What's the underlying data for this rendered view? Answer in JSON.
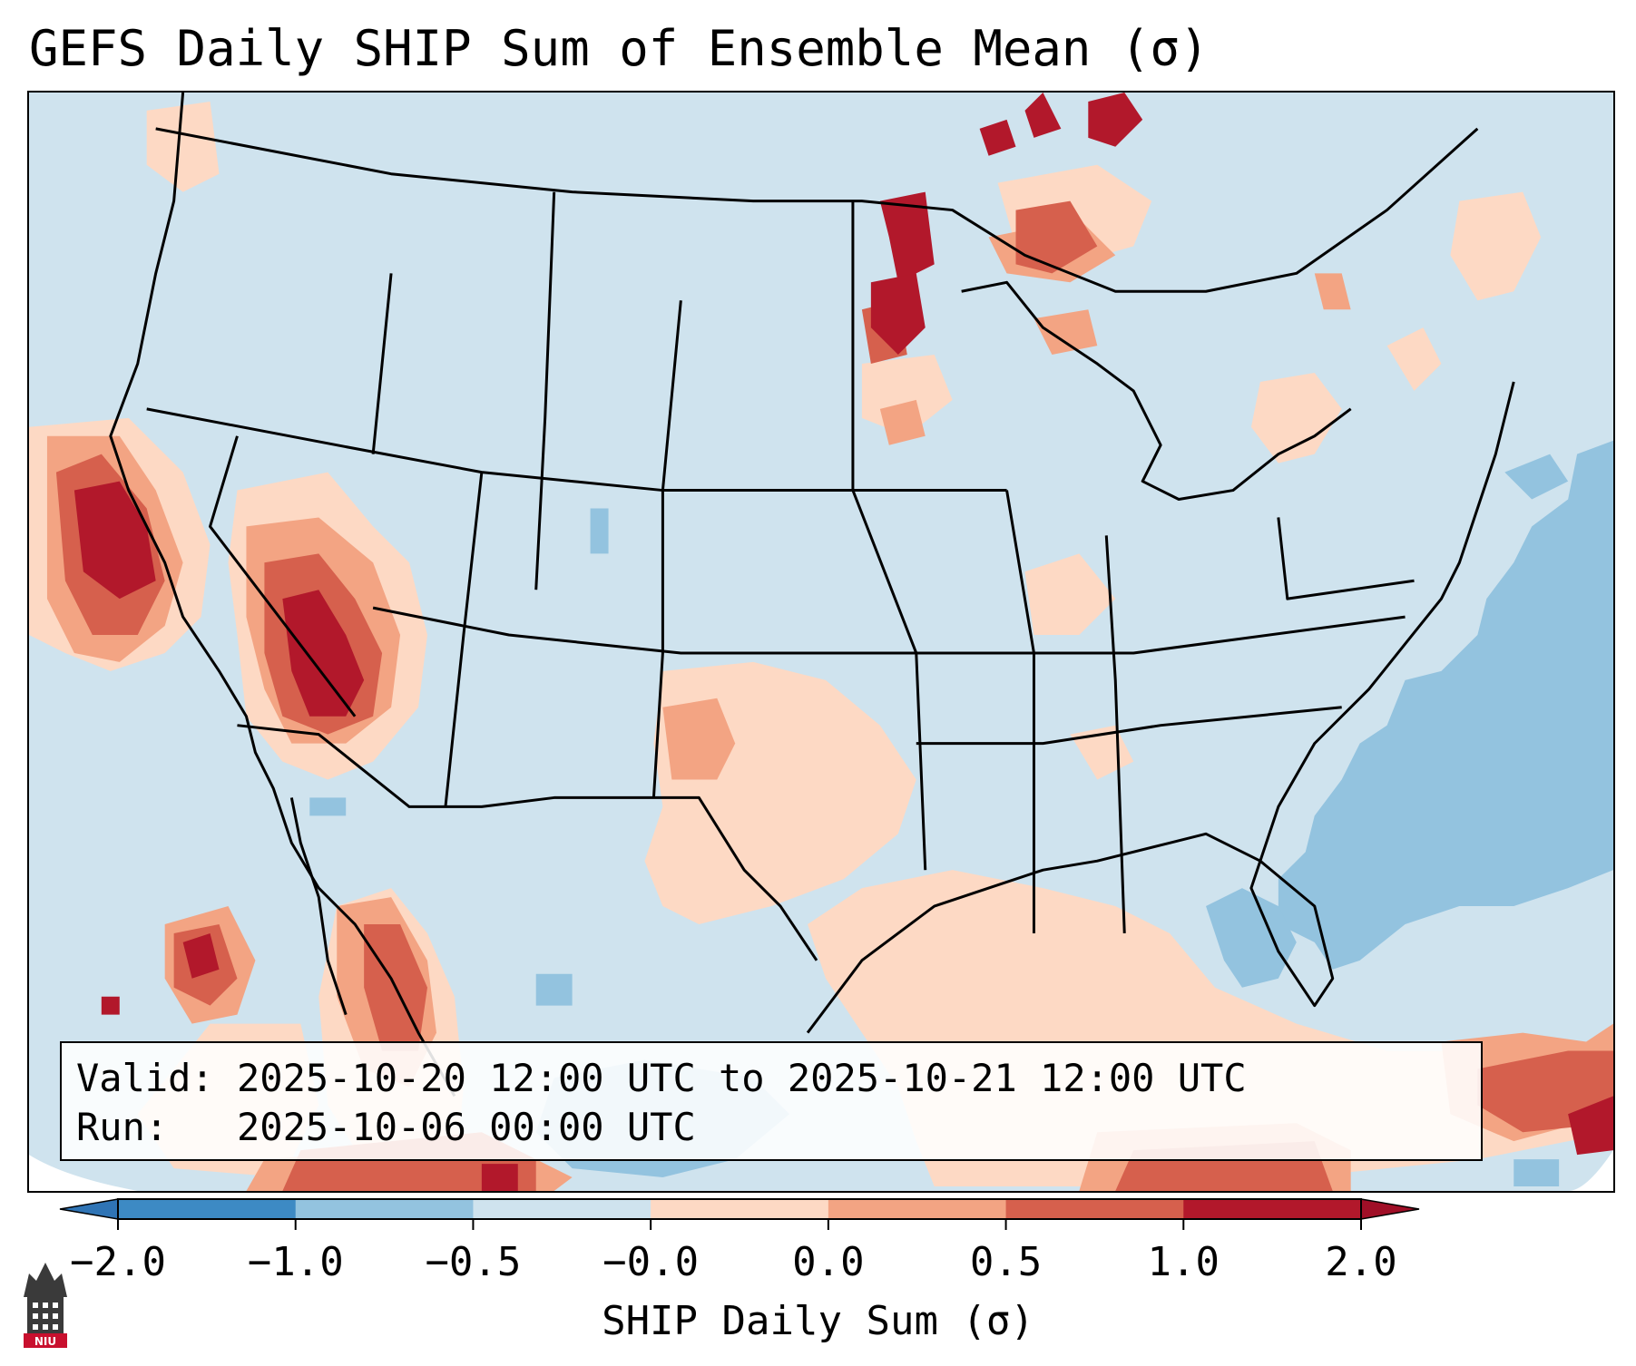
{
  "title": "GEFS Daily SHIP Sum of Ensemble Mean (σ)",
  "info": {
    "valid_label": "Valid:",
    "valid_value": "2025-10-20 12:00 UTC to 2025-10-21 12:00 UTC",
    "run_label": "Run:",
    "run_value": "2025-10-06 00:00 UTC"
  },
  "colorbar": {
    "label": "SHIP Daily Sum (σ)",
    "ticks": [
      "−2.0",
      "−1.0",
      "−0.5",
      "−0.0",
      "0.0",
      "0.5",
      "1.0",
      "2.0"
    ],
    "colors": [
      "#3d8ac4",
      "#93c3df",
      "#cfe3ee",
      "#fdd9c4",
      "#f3a483",
      "#d6604d",
      "#b2182b"
    ],
    "extend_low_color": "#2f74b5",
    "extend_high_color": "#a00f27"
  },
  "map": {
    "background_color": "#cfe3ee",
    "fields": [
      {
        "name": "positive-anomaly-light",
        "color": "#fdd9c4"
      },
      {
        "name": "positive-anomaly-medium",
        "color": "#f3a483"
      },
      {
        "name": "positive-anomaly-strong",
        "color": "#d6604d"
      },
      {
        "name": "positive-anomaly-extreme",
        "color": "#b2182b"
      },
      {
        "name": "negative-anomaly-medium",
        "color": "#93c3df"
      }
    ]
  },
  "logo": {
    "text": "NIU",
    "color": "#c8102e"
  }
}
